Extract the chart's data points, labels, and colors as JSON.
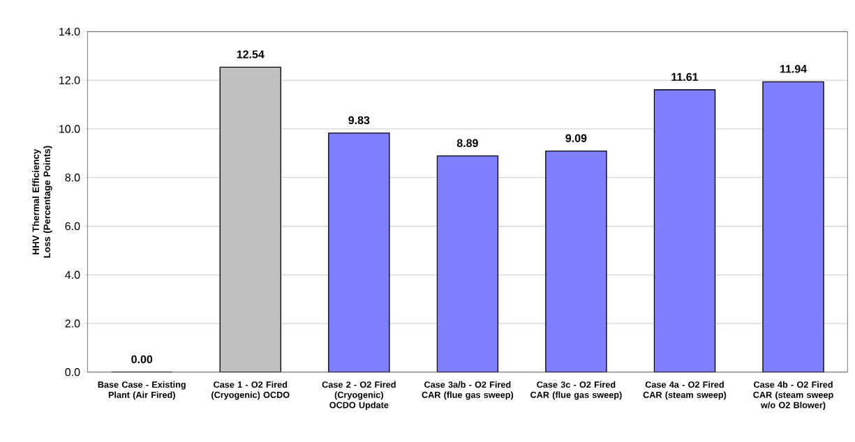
{
  "chart_data": {
    "type": "bar",
    "ylabel": "HHV Thermal Efficiency Loss (Percentage Points)",
    "categories": [
      "Base Case - Existing Plant (Air Fired)",
      "Case 1  - O2 Fired (Cryogenic) OCDO",
      "Case 2  - O2 Fired (Cryogenic) OCDO Update",
      "Case 3a/b - O2 Fired CAR (flue gas sweep)",
      "Case 3c - O2 Fired CAR (flue gas sweep)",
      "Case 4a - O2 Fired CAR (steam sweep)",
      "Case 4b - O2 Fired CAR (steam sweep w/o O2 Blower)"
    ],
    "values": [
      0.0,
      12.54,
      9.83,
      8.89,
      9.09,
      11.61,
      11.94
    ],
    "value_labels": [
      "0.00",
      "12.54",
      "9.83",
      "8.89",
      "9.09",
      "11.61",
      "11.94"
    ],
    "colors": [
      "#8080ff",
      "#c0c0c0",
      "#8080ff",
      "#8080ff",
      "#8080ff",
      "#8080ff",
      "#8080ff"
    ],
    "ylim": [
      0,
      14
    ],
    "yticks": [
      {
        "value": 0,
        "label": "0.0"
      },
      {
        "value": 2,
        "label": "2.0"
      },
      {
        "value": 4,
        "label": "4.0"
      },
      {
        "value": 6,
        "label": "6.0"
      },
      {
        "value": 8,
        "label": "8.0"
      },
      {
        "value": 10,
        "label": "10.0"
      },
      {
        "value": 12,
        "label": "12.0"
      },
      {
        "value": 14,
        "label": "14.0"
      }
    ],
    "grid": "y"
  }
}
